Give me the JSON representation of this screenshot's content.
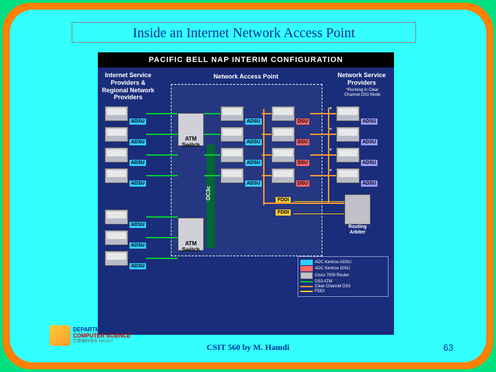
{
  "title": "Inside an Internet Network Access Point",
  "banner": "PACIFIC BELL NAP INTERIM CONFIGURATION",
  "columns": {
    "left": "Internet Service\nProviders &\nRegional Network\nProviders",
    "middle": "Network Access Point",
    "right": "Network Service\nProviders",
    "right_note": "*Running in Clear\nChannel DS3 Mode"
  },
  "left_devices": [
    "ADSU",
    "ADSU",
    "ADSU",
    "ADSU",
    "ADSU",
    "ADSU",
    "ADSU"
  ],
  "nap_left": [
    "ADSU",
    "ADSU",
    "ADSU",
    "ADSU"
  ],
  "nap_right_dsu": [
    "DSU",
    "DSU",
    "DSU",
    "DSU"
  ],
  "nap_right_adsu": [
    "ADSU",
    "ADSU",
    "ADSU",
    "ADSU"
  ],
  "right_devices": [
    "ADSU",
    "ADSU",
    "ADSU",
    "ADSU"
  ],
  "atm_switch": "ATM\nSwitch",
  "oc3_label": "OC3c",
  "fddi_label": "FDDI",
  "router_label": "Routing\nArbiter",
  "legend": [
    {
      "type": "swatch",
      "color": "#33ccff",
      "text": "ADC Kentrox ADSU"
    },
    {
      "type": "swatch",
      "color": "#ff6666",
      "text": "ADC Kentrox IDSU"
    },
    {
      "type": "box",
      "text": "Cisco 7000 Router"
    },
    {
      "type": "line",
      "color": "#00cc33",
      "text": "DS3 ATM"
    },
    {
      "type": "line",
      "color": "#ff9933",
      "text": "Clear Channel DS3"
    },
    {
      "type": "line",
      "color": "#ffcc33",
      "text": "FDDI"
    }
  ],
  "logo": {
    "l1": "DEPARTMENT OF",
    "l2": "COMPUTER SCIENCE",
    "l3": "計算機科學系    HKUST"
  },
  "footer": "CSIT 560 by M. Hamdi",
  "page": "63",
  "colors": {
    "adsu": "#33ccff",
    "dsu": "#ff6666",
    "oc3": "#006633",
    "fddi": "#ffcc33"
  }
}
